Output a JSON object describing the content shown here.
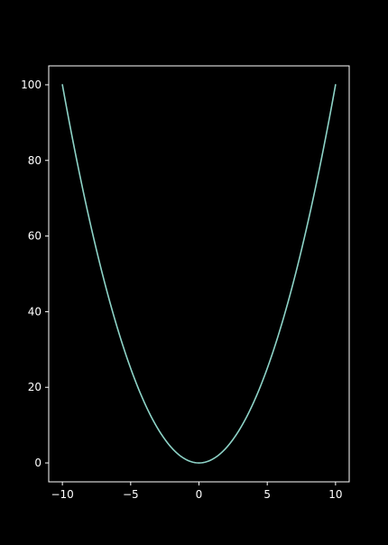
{
  "colors": {
    "background": "#000000",
    "axes": "#ffffff",
    "line": "#8dd3c7"
  },
  "chart_data": {
    "type": "line",
    "title": "",
    "xlabel": "",
    "ylabel": "",
    "grid": false,
    "function": "y = x^2",
    "xlim": [
      -11,
      11
    ],
    "ylim": [
      -5,
      105
    ],
    "xticks": [
      -10,
      -5,
      0,
      5,
      10
    ],
    "xtick_labels": [
      "−10",
      "−5",
      "0",
      "5",
      "10"
    ],
    "yticks": [
      0,
      20,
      40,
      60,
      80,
      100
    ],
    "ytick_labels": [
      "0",
      "20",
      "40",
      "60",
      "80",
      "100"
    ],
    "series": [
      {
        "x": [
          -10,
          -9,
          -8,
          -7,
          -6,
          -5,
          -4,
          -3,
          -2,
          -1,
          0,
          1,
          2,
          3,
          4,
          5,
          6,
          7,
          8,
          9,
          10
        ],
        "y": [
          100,
          81,
          64,
          49,
          36,
          25,
          16,
          9,
          4,
          1,
          0,
          1,
          4,
          9,
          16,
          25,
          36,
          49,
          64,
          81,
          100
        ]
      }
    ]
  }
}
